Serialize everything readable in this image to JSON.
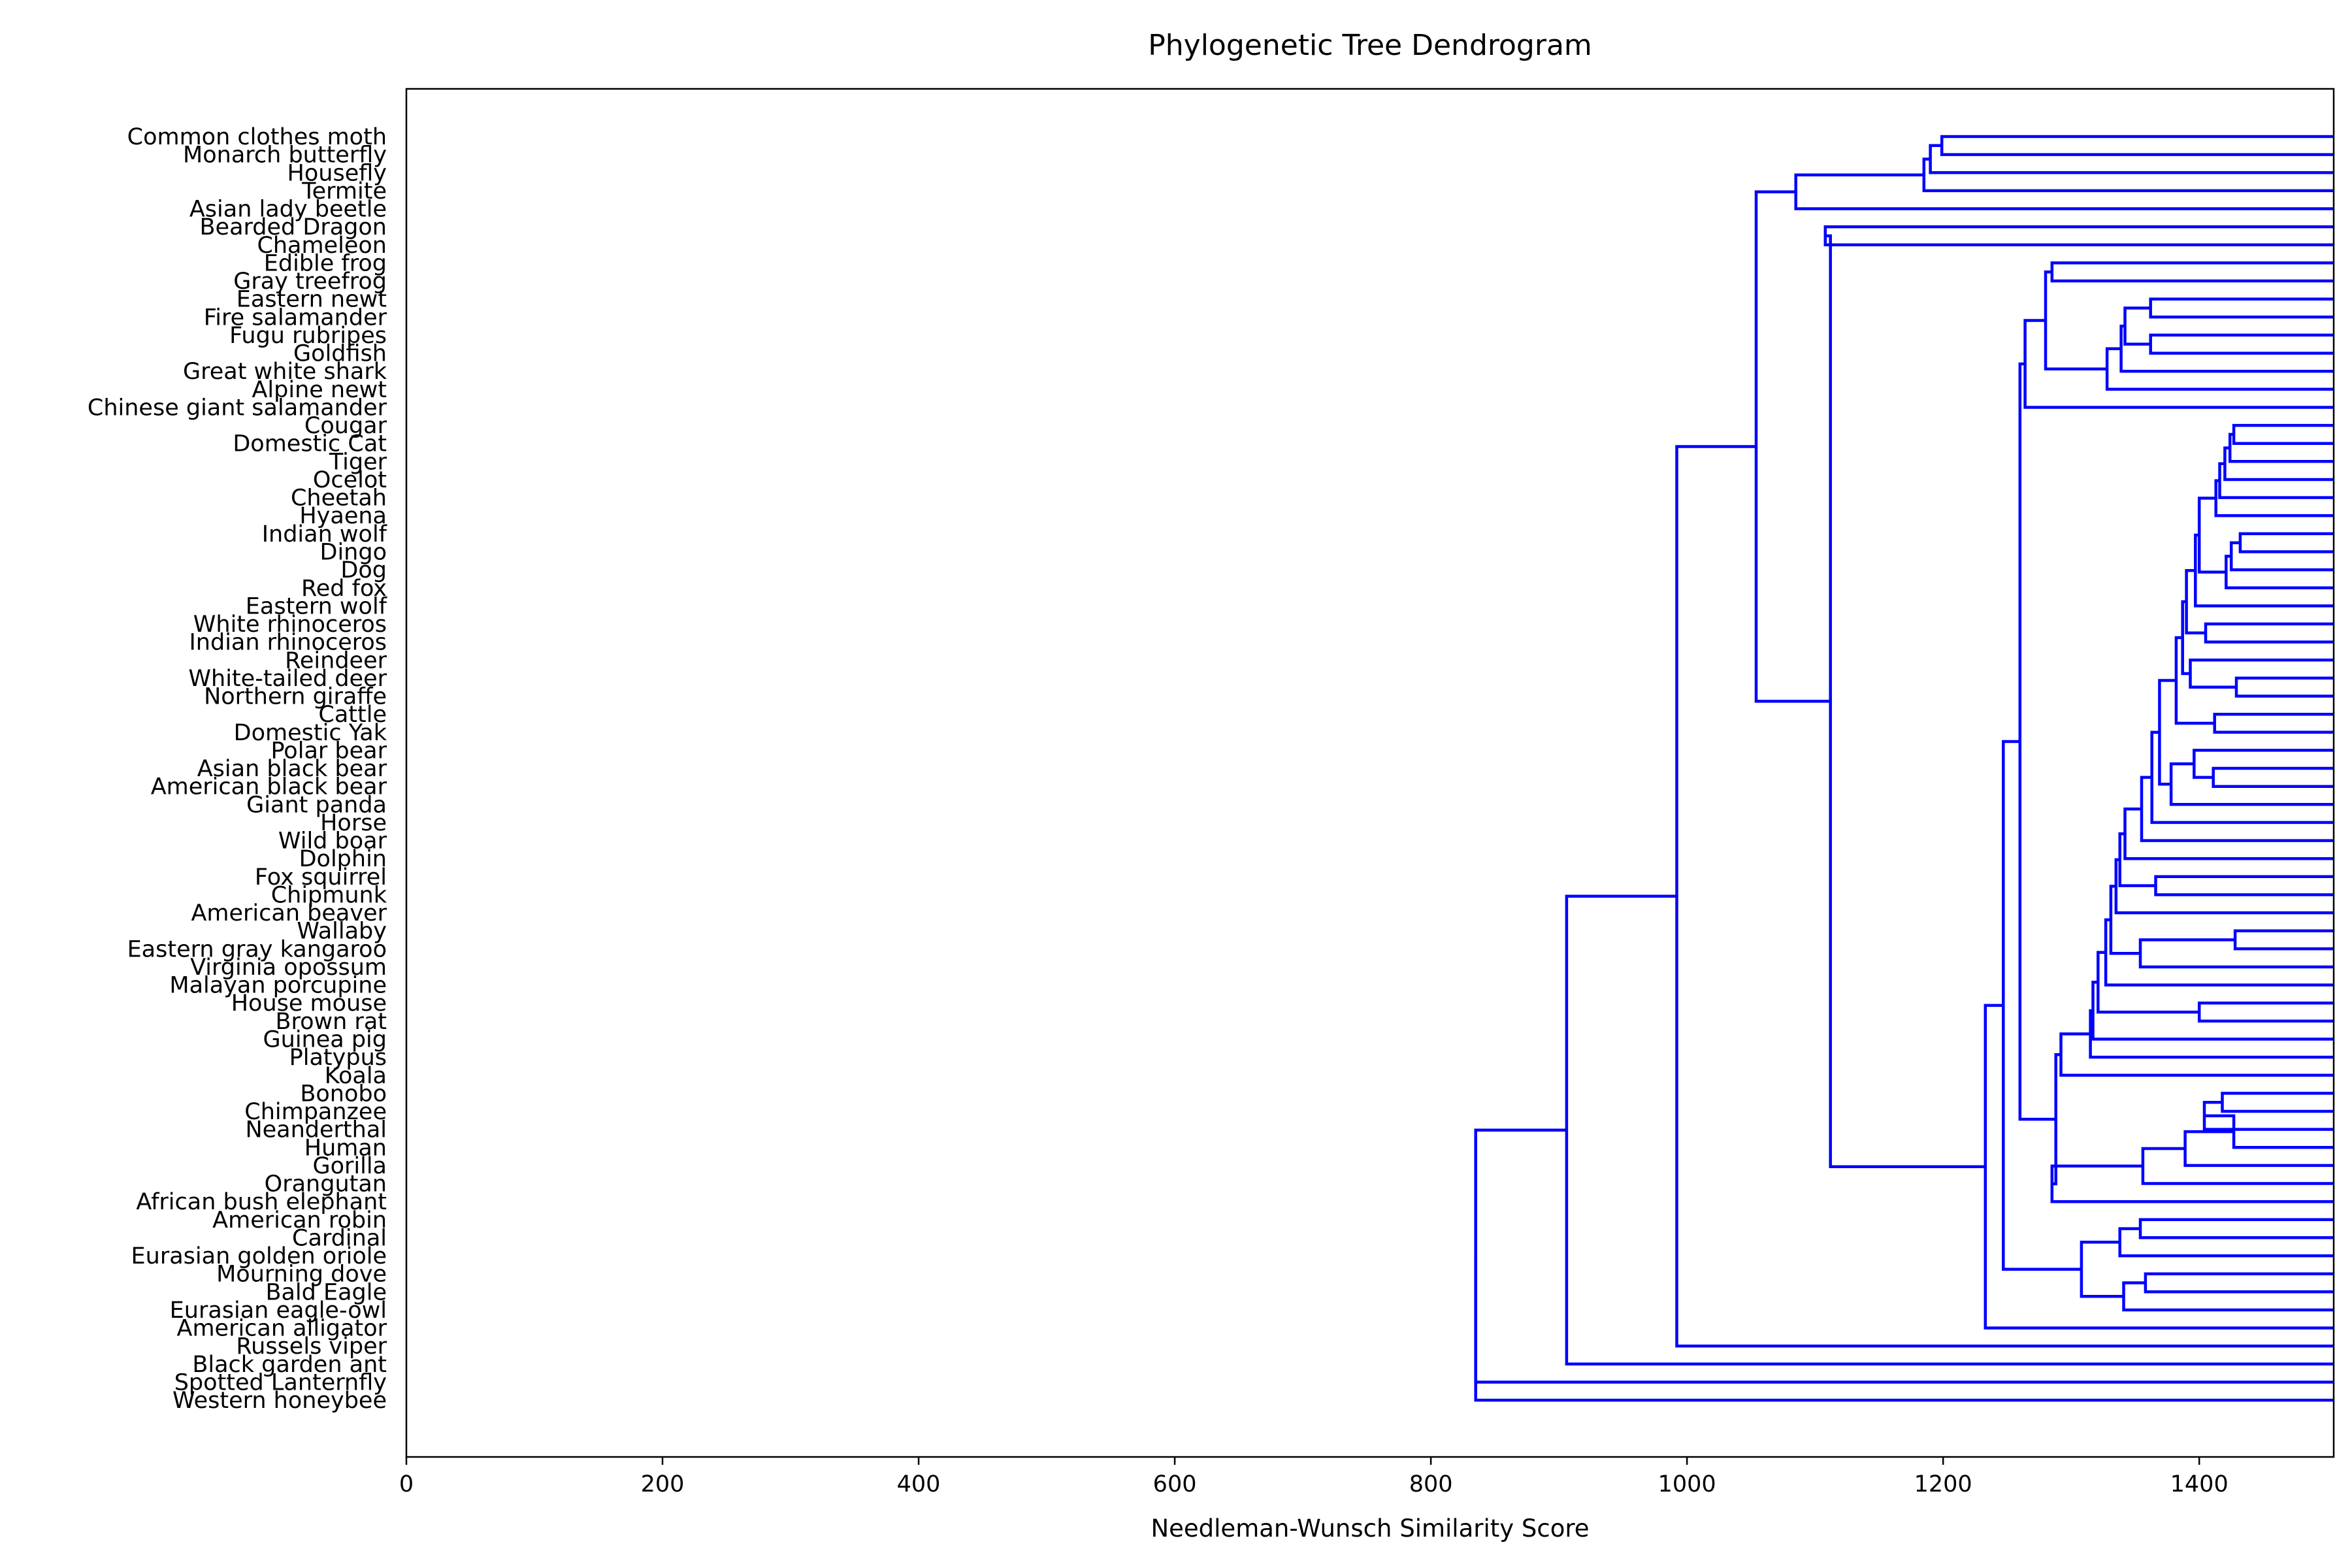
{
  "chart_data": {
    "type": "dendrogram",
    "title": "Phylogenetic Tree Dendrogram",
    "xlabel": "Needleman-Wunsch Similarity Score",
    "ylabel": "",
    "xlim": [
      0,
      1505
    ],
    "xticks": [
      0,
      200,
      400,
      600,
      800,
      1000,
      1200,
      1400
    ],
    "line_color": "#0000ff",
    "grid": false,
    "leaf_tail_x": 1505,
    "leaves": [
      "Common clothes moth",
      "Monarch butterfly",
      "Housefly",
      "Termite",
      "Asian lady beetle",
      "Bearded Dragon",
      "Chameleon",
      "Edible frog",
      "Gray treefrog",
      "Eastern newt",
      "Fire salamander",
      "Fugu rubripes",
      "Goldfish",
      "Great white shark",
      "Alpine newt",
      "Chinese giant salamander",
      "Cougar",
      "Domestic Cat",
      "Tiger",
      "Ocelot",
      "Cheetah",
      "Hyaena",
      "Indian wolf",
      "Dingo",
      "Dog",
      "Red fox",
      "Eastern wolf",
      "White rhinoceros",
      "Indian rhinoceros",
      "Reindeer",
      "White-tailed deer",
      "Northern giraffe",
      "Cattle",
      "Domestic Yak",
      "Polar bear",
      "Asian black bear",
      "American black bear",
      "Giant panda",
      "Horse",
      "Wild boar",
      "Dolphin",
      "Fox squirrel",
      "Chipmunk",
      "American beaver",
      "Wallaby",
      "Eastern gray kangaroo",
      "Virginia opossum",
      "Malayan porcupine",
      "House mouse",
      "Brown rat",
      "Guinea pig",
      "Platypus",
      "Koala",
      "Bonobo",
      "Chimpanzee",
      "Neanderthal",
      "Human",
      "Gorilla",
      "Orangutan",
      "African bush elephant",
      "American robin",
      "Cardinal",
      "Eurasian golden oriole",
      "Mourning dove",
      "Bald Eagle",
      "Eurasian eagle-owl",
      "American alligator",
      "Russels viper",
      "Black garden ant",
      "Spotted Lanternfly",
      "Western honeybee"
    ],
    "merges": [
      {
        "left": "Common clothes moth",
        "right": "Monarch butterfly",
        "score": 1199
      },
      {
        "left": "Housefly",
        "right": 0,
        "score": 1190
      },
      {
        "left": "Termite",
        "right": 1,
        "score": 1185
      },
      {
        "left": "Asian lady beetle",
        "right": 2,
        "score": 1085
      },
      {
        "left": "Bearded Dragon",
        "right": "Chameleon",
        "score": 1108
      },
      {
        "left": "Eastern newt",
        "right": "Fire salamander",
        "score": 1362
      },
      {
        "left": "Fugu rubripes",
        "right": "Goldfish",
        "score": 1362
      },
      {
        "left": 5,
        "right": 6,
        "score": 1342
      },
      {
        "left": 7,
        "right": "Great white shark",
        "score": 1339
      },
      {
        "left": 8,
        "right": "Alpine newt",
        "score": 1328
      },
      {
        "left": "Edible frog",
        "right": "Gray treefrog",
        "score": 1285
      },
      {
        "left": 10,
        "right": 9,
        "score": 1280
      },
      {
        "left": 11,
        "right": "Chinese giant salamander",
        "score": 1264
      },
      {
        "left": "Indian wolf",
        "right": "Dingo",
        "score": 1432
      },
      {
        "left": 13,
        "right": "Dog",
        "score": 1425
      },
      {
        "left": 14,
        "right": "Red fox",
        "score": 1421
      },
      {
        "left": "Cougar",
        "right": "Domestic Cat",
        "score": 1427
      },
      {
        "left": 16,
        "right": "Tiger",
        "score": 1424
      },
      {
        "left": 17,
        "right": "Ocelot",
        "score": 1420
      },
      {
        "left": 18,
        "right": "Cheetah",
        "score": 1416
      },
      {
        "left": 19,
        "right": "Hyaena",
        "score": 1413
      },
      {
        "left": 20,
        "right": 15,
        "score": 1400
      },
      {
        "left": 21,
        "right": "Eastern wolf",
        "score": 1397
      },
      {
        "left": "White rhinoceros",
        "right": "Indian rhinoceros",
        "score": 1405
      },
      {
        "left": 22,
        "right": 23,
        "score": 1390
      },
      {
        "left": "White-tailed deer",
        "right": "Northern giraffe",
        "score": 1429
      },
      {
        "left": 25,
        "right": "Reindeer",
        "score": 1393
      },
      {
        "left": 24,
        "right": 26,
        "score": 1387
      },
      {
        "left": "Cattle",
        "right": "Domestic Yak",
        "score": 1412
      },
      {
        "left": 27,
        "right": 28,
        "score": 1382
      },
      {
        "left": "Asian black bear",
        "right": "American black bear",
        "score": 1411
      },
      {
        "left": "Polar bear",
        "right": 30,
        "score": 1396
      },
      {
        "left": 31,
        "right": "Giant panda",
        "score": 1378
      },
      {
        "left": 29,
        "right": 32,
        "score": 1369
      },
      {
        "left": 33,
        "right": "Horse",
        "score": 1363
      },
      {
        "left": 34,
        "right": "Wild boar",
        "score": 1355
      },
      {
        "left": "Fox squirrel",
        "right": "Chipmunk",
        "score": 1366
      },
      {
        "left": 35,
        "right": "Dolphin",
        "score": 1342
      },
      {
        "left": 37,
        "right": 36,
        "score": 1338
      },
      {
        "left": 38,
        "right": "American beaver",
        "score": 1335
      },
      {
        "left": "Wallaby",
        "right": "Eastern gray kangaroo",
        "score": 1428
      },
      {
        "left": 40,
        "right": "Virginia opossum",
        "score": 1354
      },
      {
        "left": 39,
        "right": 41,
        "score": 1331
      },
      {
        "left": 42,
        "right": "Malayan porcupine",
        "score": 1327
      },
      {
        "left": "House mouse",
        "right": "Brown rat",
        "score": 1400
      },
      {
        "left": 43,
        "right": 44,
        "score": 1321
      },
      {
        "left": 45,
        "right": "Guinea pig",
        "score": 1317
      },
      {
        "left": 46,
        "right": "Platypus",
        "score": 1315
      },
      {
        "left": "Bonobo",
        "right": "Chimpanzee",
        "score": 1418
      },
      {
        "left": 48,
        "right": "Neanderthal",
        "score": 1404
      },
      {
        "left": 49,
        "right": "Human",
        "score": 1427
      },
      {
        "left": 50,
        "right": "Gorilla",
        "score": 1389
      },
      {
        "left": 51,
        "right": "Orangutan",
        "score": 1356
      },
      {
        "left": 47,
        "right": "Koala",
        "score": 1292
      },
      {
        "left": 52,
        "right": "African bush elephant",
        "score": 1285
      },
      {
        "left": 53,
        "right": 54,
        "score": 1288
      },
      {
        "left": 12,
        "right": 55,
        "score": 1260
      },
      {
        "left": "American robin",
        "right": "Cardinal",
        "score": 1354
      },
      {
        "left": 57,
        "right": "Eurasian golden oriole",
        "score": 1338
      },
      {
        "left": "Mourning dove",
        "right": "Bald Eagle",
        "score": 1358
      },
      {
        "left": 59,
        "right": "Eurasian eagle-owl",
        "score": 1341
      },
      {
        "left": 58,
        "right": 60,
        "score": 1308
      },
      {
        "left": 56,
        "right": 61,
        "score": 1247
      },
      {
        "left": 62,
        "right": "American alligator",
        "score": 1233
      },
      {
        "left": 4,
        "right": 63,
        "score": 1112
      },
      {
        "left": 3,
        "right": 64,
        "score": 1054
      },
      {
        "left": 65,
        "right": "Russels viper",
        "score": 992
      },
      {
        "left": 66,
        "right": "Black garden ant",
        "score": 906
      },
      {
        "left": 67,
        "right": "Spotted Lanternfly",
        "score": 835
      },
      {
        "left": 68,
        "right": "Western honeybee",
        "score": 835
      }
    ]
  }
}
